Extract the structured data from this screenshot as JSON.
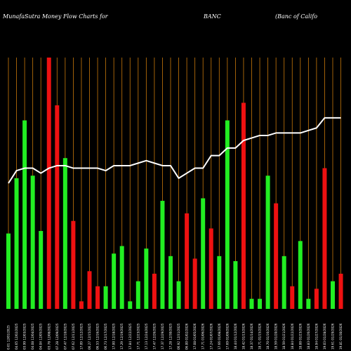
{
  "header": {
    "left": "MunafaSutra  Money Flow  Charts for",
    "ticker": "BANC",
    "right": "(Banc                of  Califo"
  },
  "colors": {
    "background": "#000000",
    "grid": "#c8780a",
    "up": "#22ee22",
    "down": "#ee1111",
    "line": "#ffffff"
  },
  "chart_data": {
    "type": "bar",
    "categories": [
      "0.01 12/01/2025",
      "04.65 12/02/2025",
      "03.99 12/03/2025",
      "04.08 12/04/2025",
      "04.04 12/05/2025",
      "03.78 12/08/2025",
      "07.28 12/09/2025",
      "07.47 12/10/2025",
      "07.62 12/11/2025",
      "17.09 12/12/2025",
      "06.27 12/15/2025",
      "06.53 12/16/2025",
      "06.73 12/17/2025",
      "17.00 12/18/2025",
      "17.29 12/19/2025",
      "17.84 12/22/2025",
      "17.71 12/23/2025",
      "17.13 12/24/2025",
      "17.47 12/26/2025",
      "17.37 12/29/2025",
      "17.28 12/30/2025",
      "06.92 12/31/2025",
      "06.00 01/02/2026",
      "17.08 01/05/2026",
      "17.71 01/06/2026",
      "17.24 01/07/2026",
      "17.66 01/08/2026",
      "17.69 01/09/2026",
      "18.44 01/12/2026",
      "18.42 01/13/2026",
      "18.37 01/14/2026",
      "18.71 01/15/2026",
      "18.70 01/16/2026",
      "18.59 01/20/2026",
      "18.59 01/21/2026",
      "18.84 01/22/2026",
      "18.88 01/23/2026",
      "18.83 01/26/2026",
      "18.94 01/27/2026",
      "19.03 01/28/2026",
      "19.61 01/29/2026",
      "19.81 01/30/2026"
    ],
    "bar_colors": [
      "green",
      "green",
      "green",
      "green",
      "green",
      "red",
      "red",
      "green",
      "red",
      "red",
      "red",
      "red",
      "green",
      "green",
      "green",
      "green",
      "green",
      "green",
      "red",
      "green",
      "green",
      "green",
      "red",
      "red",
      "green",
      "red",
      "green",
      "green",
      "green",
      "red",
      "green",
      "green",
      "green",
      "red",
      "green",
      "red",
      "green",
      "green",
      "red",
      "red",
      "green",
      "red"
    ],
    "bar_values": [
      0.3,
      0.52,
      0.75,
      0.53,
      0.31,
      1.0,
      0.81,
      0.6,
      0.35,
      0.03,
      0.15,
      0.09,
      0.09,
      0.22,
      0.25,
      0.03,
      0.11,
      0.24,
      0.14,
      0.43,
      0.21,
      0.11,
      0.38,
      0.2,
      0.44,
      0.32,
      0.21,
      0.75,
      0.19,
      0.82,
      0.04,
      0.04,
      0.53,
      0.42,
      0.21,
      0.09,
      0.27,
      0.04,
      0.08,
      0.56,
      0.11,
      0.14
    ],
    "line_values": [
      0.5,
      0.55,
      0.56,
      0.56,
      0.54,
      0.56,
      0.57,
      0.57,
      0.56,
      0.56,
      0.56,
      0.56,
      0.55,
      0.57,
      0.57,
      0.57,
      0.58,
      0.59,
      0.58,
      0.57,
      0.57,
      0.52,
      0.54,
      0.56,
      0.56,
      0.61,
      0.61,
      0.64,
      0.64,
      0.67,
      0.68,
      0.69,
      0.69,
      0.7,
      0.7,
      0.7,
      0.7,
      0.71,
      0.72,
      0.76,
      0.76,
      0.76
    ],
    "ylim": [
      0,
      1
    ]
  }
}
